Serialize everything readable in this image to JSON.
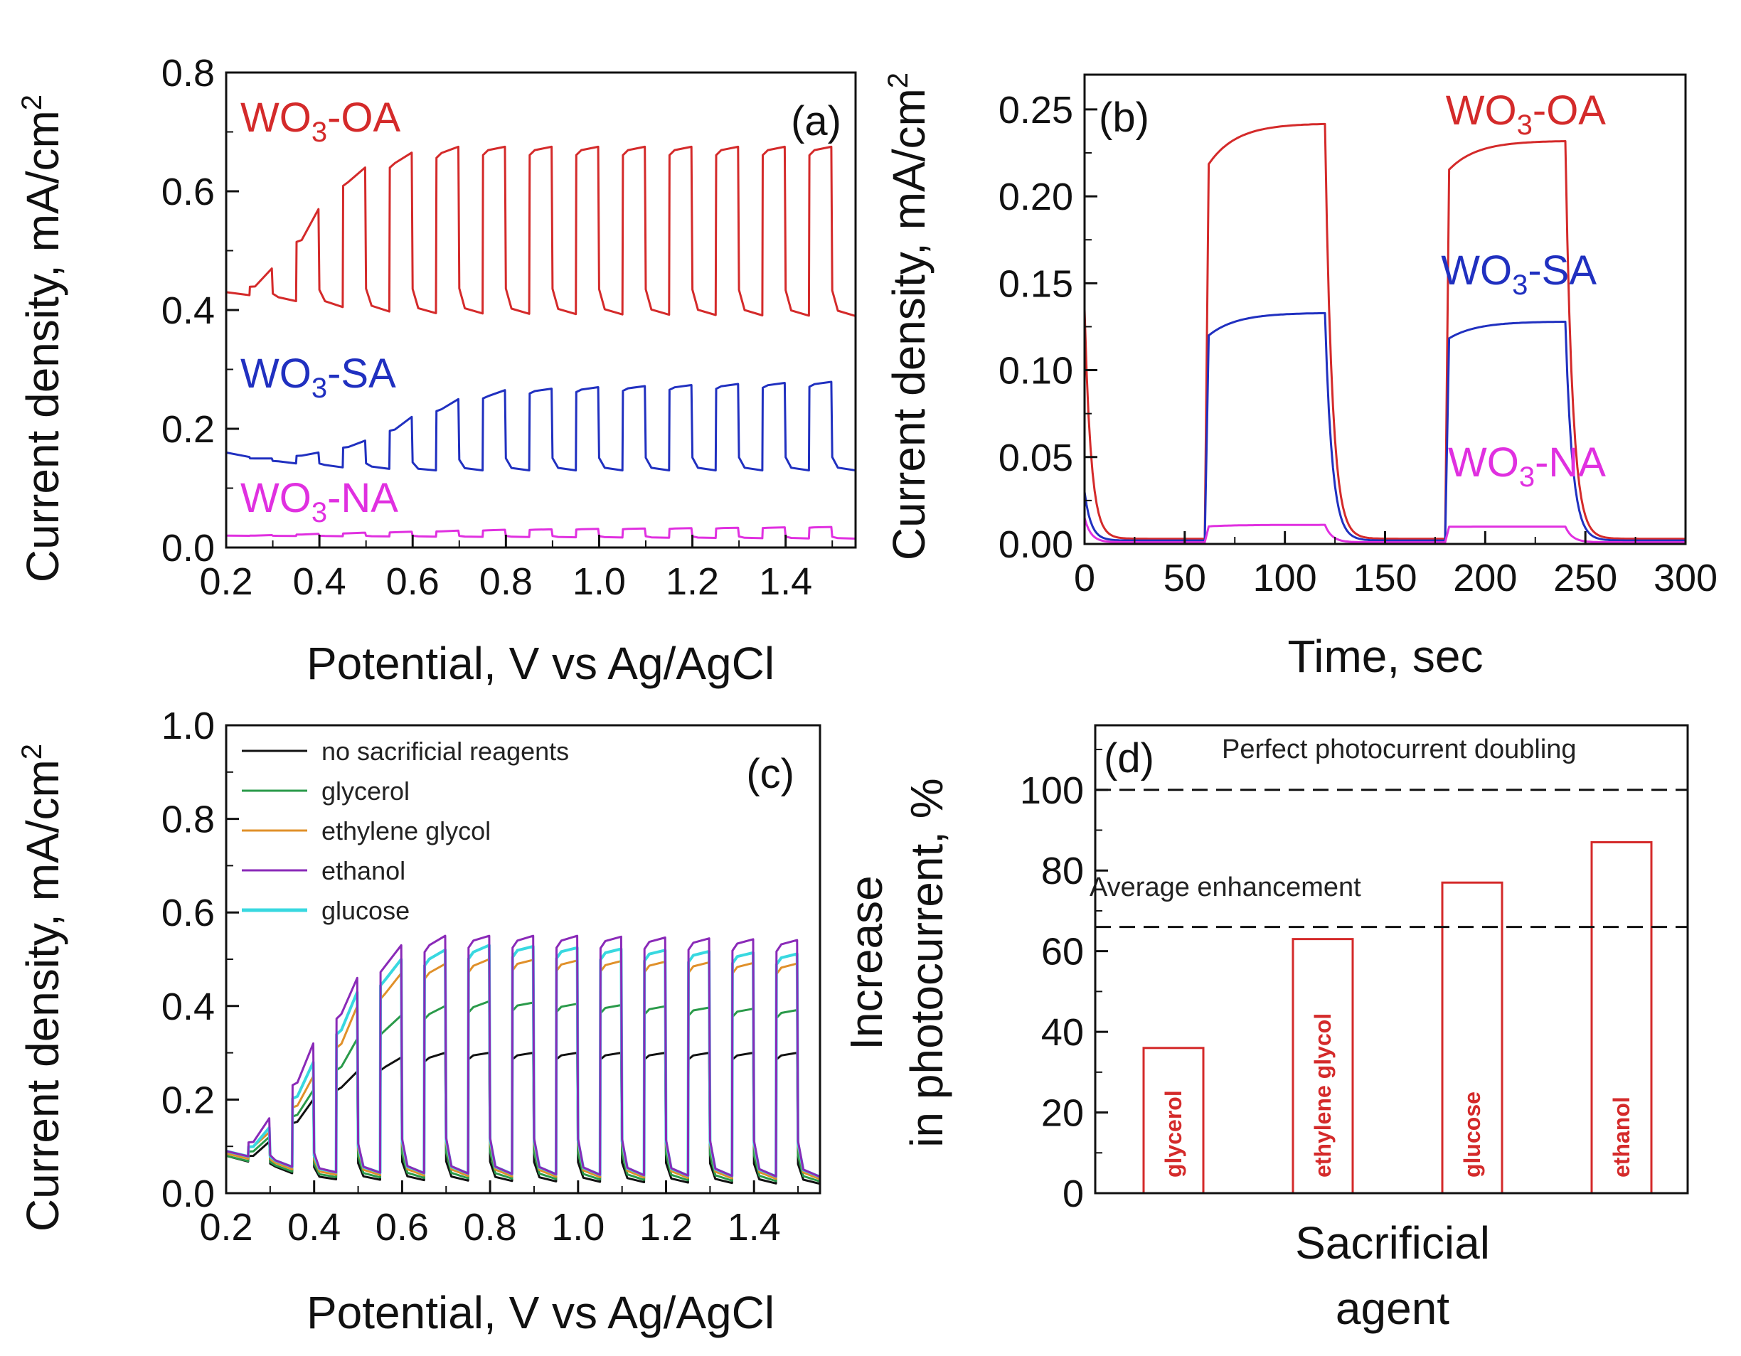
{
  "colors": {
    "oa": "#d42a2a",
    "sa": "#2030c0",
    "na": "#e030e0",
    "none": "#111111",
    "glycerol": "#2a9a4a",
    "ethylene_glycol": "#e0902a",
    "ethanol": "#8a2ab8",
    "glucose": "#38d8e0",
    "bar": "#d42a2a"
  },
  "chart_data": [
    {
      "panel": "(a)",
      "type": "line",
      "xlabel": "Potential, V vs Ag/AgCl",
      "ylabel": "Current density, mA/cm",
      "ylabel_sup": "2",
      "xlim": [
        0.2,
        1.55
      ],
      "ylim": [
        0.0,
        0.8
      ],
      "xticks": [
        "0.2",
        "0.4",
        "0.6",
        "0.8",
        "1.0",
        "1.2",
        "1.4"
      ],
      "yticks": [
        "0.0",
        "0.2",
        "0.4",
        "0.6",
        "0.8"
      ],
      "chopped": {
        "start": 0.2,
        "end": 1.55,
        "first_on": 0.25,
        "period": 0.1,
        "on_width": 0.05,
        "off_value": 0.001
      },
      "series": [
        {
          "key": "oa",
          "name_base": "WO",
          "name_sub": "3",
          "name_suffix": "-OA",
          "dark": [
            [
              0.2,
              0.43
            ],
            [
              0.3,
              0.42
            ],
            [
              0.5,
              0.4
            ],
            [
              0.6,
              0.395
            ],
            [
              1.55,
              0.39
            ]
          ],
          "light": [
            [
              0.25,
              0.44
            ],
            [
              0.3,
              0.47
            ],
            [
              0.4,
              0.57
            ],
            [
              0.45,
              0.62
            ],
            [
              0.5,
              0.64
            ],
            [
              0.6,
              0.665
            ],
            [
              0.7,
              0.675
            ],
            [
              1.0,
              0.675
            ],
            [
              1.55,
              0.675
            ]
          ]
        },
        {
          "key": "sa",
          "name_base": "WO",
          "name_sub": "3",
          "name_suffix": "-SA",
          "dark": [
            [
              0.2,
              0.16
            ],
            [
              0.3,
              0.145
            ],
            [
              0.45,
              0.135
            ],
            [
              0.5,
              0.135
            ],
            [
              0.6,
              0.13
            ],
            [
              1.55,
              0.13
            ]
          ],
          "light": [
            [
              0.25,
              0.15
            ],
            [
              0.3,
              0.15
            ],
            [
              0.4,
              0.16
            ],
            [
              0.5,
              0.18
            ],
            [
              0.6,
              0.22
            ],
            [
              0.7,
              0.25
            ],
            [
              0.8,
              0.265
            ],
            [
              1.0,
              0.27
            ],
            [
              1.55,
              0.28
            ]
          ]
        },
        {
          "key": "na",
          "name_base": "WO",
          "name_sub": "3",
          "name_suffix": "-NA",
          "dark": [
            [
              0.2,
              0.02
            ],
            [
              1.55,
              0.015
            ]
          ],
          "light": [
            [
              0.25,
              0.02
            ],
            [
              0.5,
              0.025
            ],
            [
              0.8,
              0.03
            ],
            [
              1.55,
              0.035
            ]
          ]
        }
      ]
    },
    {
      "panel": "(b)",
      "type": "line",
      "xlabel": "Time, sec",
      "ylabel": "Current density, mA/cm",
      "ylabel_sup": "2",
      "xlim": [
        0,
        300
      ],
      "ylim": [
        0.0,
        0.27
      ],
      "xticks": [
        "0",
        "50",
        "100",
        "150",
        "200",
        "250",
        "300"
      ],
      "yticks": [
        "0.00",
        "0.05",
        "0.10",
        "0.15",
        "0.20",
        "0.25"
      ],
      "light_windows": [
        [
          60,
          120
        ],
        [
          180,
          240
        ]
      ],
      "series": [
        {
          "key": "oa",
          "name_base": "WO",
          "name_sub": "3",
          "name_suffix": "-OA",
          "spike": 0.135,
          "dark": 0.003,
          "light_start": 0.215,
          "light_end": 0.242,
          "light2_end": 0.232
        },
        {
          "key": "sa",
          "name_base": "WO",
          "name_sub": "3",
          "name_suffix": "-SA",
          "spike": 0.03,
          "dark": 0.002,
          "light_start": 0.118,
          "light_end": 0.133,
          "light2_end": 0.128
        },
        {
          "key": "na",
          "name_base": "WO",
          "name_sub": "3",
          "name_suffix": "-NA",
          "spike": 0.015,
          "dark": 0.001,
          "light_start": 0.01,
          "light_end": 0.011,
          "light2_end": 0.01
        }
      ]
    },
    {
      "panel": "(c)",
      "type": "line",
      "xlabel": "Potential, V vs Ag/AgCl",
      "ylabel": "Current density, mA/cm",
      "ylabel_sup": "2",
      "xlim": [
        0.2,
        1.55
      ],
      "ylim": [
        0.0,
        1.0
      ],
      "xticks": [
        "0.2",
        "0.4",
        "0.6",
        "0.8",
        "1.0",
        "1.2",
        "1.4"
      ],
      "yticks": [
        "0.0",
        "0.2",
        "0.4",
        "0.6",
        "0.8",
        "1.0"
      ],
      "chopped": {
        "start": 0.2,
        "end": 1.55,
        "first_on": 0.25,
        "period": 0.1,
        "on_width": 0.05,
        "off_value": 0.001
      },
      "legend": [
        {
          "key": "none",
          "label": "no sacrificial reagents"
        },
        {
          "key": "glycerol",
          "label": "glycerol"
        },
        {
          "key": "ethylene_glycol",
          "label": "ethylene glycol"
        },
        {
          "key": "ethanol",
          "label": "ethanol"
        },
        {
          "key": "glucose",
          "label": "glucose"
        }
      ],
      "series": [
        {
          "key": "none",
          "dark": [
            [
              0.2,
              0.08
            ],
            [
              0.4,
              0.03
            ],
            [
              1.55,
              0.02
            ]
          ],
          "light": [
            [
              0.25,
              0.08
            ],
            [
              0.3,
              0.11
            ],
            [
              0.4,
              0.2
            ],
            [
              0.5,
              0.26
            ],
            [
              0.6,
              0.29
            ],
            [
              0.7,
              0.3
            ],
            [
              1.55,
              0.3
            ]
          ]
        },
        {
          "key": "glycerol",
          "dark": [
            [
              0.2,
              0.08
            ],
            [
              0.4,
              0.035
            ],
            [
              1.55,
              0.025
            ]
          ],
          "light": [
            [
              0.25,
              0.09
            ],
            [
              0.3,
              0.12
            ],
            [
              0.4,
              0.22
            ],
            [
              0.5,
              0.33
            ],
            [
              0.6,
              0.38
            ],
            [
              0.7,
              0.4
            ],
            [
              0.8,
              0.41
            ],
            [
              1.55,
              0.39
            ]
          ]
        },
        {
          "key": "ethylene_glycol",
          "dark": [
            [
              0.2,
              0.085
            ],
            [
              0.4,
              0.04
            ],
            [
              1.55,
              0.03
            ]
          ],
          "light": [
            [
              0.25,
              0.1
            ],
            [
              0.3,
              0.13
            ],
            [
              0.4,
              0.25
            ],
            [
              0.5,
              0.4
            ],
            [
              0.6,
              0.47
            ],
            [
              0.7,
              0.49
            ],
            [
              0.8,
              0.5
            ],
            [
              1.55,
              0.49
            ]
          ]
        },
        {
          "key": "ethanol",
          "dark": [
            [
              0.2,
              0.09
            ],
            [
              0.4,
              0.045
            ],
            [
              1.55,
              0.035
            ]
          ],
          "light": [
            [
              0.25,
              0.11
            ],
            [
              0.3,
              0.16
            ],
            [
              0.4,
              0.32
            ],
            [
              0.5,
              0.46
            ],
            [
              0.6,
              0.53
            ],
            [
              0.7,
              0.55
            ],
            [
              1.0,
              0.55
            ],
            [
              1.55,
              0.54
            ]
          ]
        },
        {
          "key": "glucose",
          "dark": [
            [
              0.2,
              0.09
            ],
            [
              0.4,
              0.045
            ],
            [
              1.55,
              0.035
            ]
          ],
          "light": [
            [
              0.25,
              0.1
            ],
            [
              0.3,
              0.14
            ],
            [
              0.4,
              0.28
            ],
            [
              0.5,
              0.43
            ],
            [
              0.6,
              0.5
            ],
            [
              0.7,
              0.52
            ],
            [
              0.8,
              0.53
            ],
            [
              1.55,
              0.51
            ]
          ]
        }
      ]
    },
    {
      "panel": "(d)",
      "type": "bar",
      "xlabel_lines": [
        "Sacrificial",
        "agent"
      ],
      "ylabel_lines": [
        "Increase",
        "in photocurrent, %"
      ],
      "ylim": [
        0,
        116
      ],
      "yticks": [
        "0",
        "20",
        "40",
        "60",
        "80",
        "100"
      ],
      "categories": [
        "glycerol",
        "ethylene glycol",
        "glucose",
        "ethanol"
      ],
      "values": [
        36,
        63,
        77,
        87
      ],
      "ref_lines": [
        {
          "value": 100,
          "label": "Perfect photocurrent doubling"
        },
        {
          "value": 66,
          "label": "Average enhancement"
        }
      ]
    }
  ]
}
